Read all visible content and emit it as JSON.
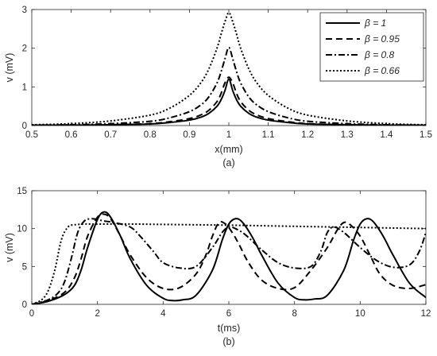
{
  "chart_data": [
    {
      "type": "line",
      "panel_label": "(a)",
      "xlabel": "x(mm)",
      "ylabel": "v (mV)",
      "xlim": [
        0.5,
        1.5
      ],
      "ylim": [
        0,
        3
      ],
      "xticks": [
        "0.5",
        "0.6",
        "0.7",
        "0.8",
        "0.9",
        "1",
        "1.1",
        "1.2",
        "1.3",
        "1.4",
        "1.5"
      ],
      "yticks": [
        "0",
        "1",
        "2",
        "3"
      ],
      "grid": false,
      "legend_position": "top-right",
      "series": [
        {
          "name": "β = 1",
          "style": "solid",
          "x": [
            0.5,
            0.6,
            0.7,
            0.8,
            0.85,
            0.9,
            0.93,
            0.95,
            0.97,
            0.98,
            0.99,
            1.0,
            1.01,
            1.02,
            1.03,
            1.05,
            1.07,
            1.1,
            1.15,
            1.2,
            1.3,
            1.4,
            1.5
          ],
          "y": [
            0.01,
            0.01,
            0.02,
            0.04,
            0.08,
            0.14,
            0.22,
            0.32,
            0.5,
            0.66,
            0.9,
            1.2,
            0.9,
            0.66,
            0.5,
            0.32,
            0.22,
            0.14,
            0.08,
            0.04,
            0.02,
            0.01,
            0.01
          ]
        },
        {
          "name": "β = 0.95",
          "style": "dashed",
          "x": [
            0.5,
            0.6,
            0.7,
            0.8,
            0.85,
            0.9,
            0.93,
            0.95,
            0.97,
            0.98,
            0.99,
            1.0,
            1.01,
            1.02,
            1.03,
            1.05,
            1.07,
            1.1,
            1.15,
            1.2,
            1.3,
            1.4,
            1.5
          ],
          "y": [
            0.01,
            0.01,
            0.02,
            0.05,
            0.1,
            0.18,
            0.28,
            0.4,
            0.62,
            0.82,
            1.1,
            1.25,
            1.1,
            0.82,
            0.62,
            0.4,
            0.28,
            0.18,
            0.1,
            0.05,
            0.02,
            0.01,
            0.01
          ]
        },
        {
          "name": "β = 0.8",
          "style": "dashdot",
          "x": [
            0.5,
            0.6,
            0.7,
            0.8,
            0.85,
            0.9,
            0.93,
            0.95,
            0.97,
            0.98,
            0.99,
            1.0,
            1.01,
            1.02,
            1.03,
            1.05,
            1.07,
            1.1,
            1.15,
            1.2,
            1.3,
            1.4,
            1.5
          ],
          "y": [
            0.01,
            0.02,
            0.05,
            0.11,
            0.2,
            0.36,
            0.54,
            0.75,
            1.1,
            1.38,
            1.72,
            2.02,
            1.72,
            1.38,
            1.1,
            0.75,
            0.54,
            0.36,
            0.2,
            0.11,
            0.05,
            0.02,
            0.01
          ]
        },
        {
          "name": "β = 0.66",
          "style": "dotted",
          "x": [
            0.5,
            0.6,
            0.7,
            0.8,
            0.85,
            0.9,
            0.93,
            0.95,
            0.97,
            0.98,
            0.99,
            1.0,
            1.01,
            1.02,
            1.03,
            1.05,
            1.07,
            1.1,
            1.15,
            1.2,
            1.3,
            1.4,
            1.5
          ],
          "y": [
            0.02,
            0.05,
            0.12,
            0.27,
            0.45,
            0.78,
            1.12,
            1.48,
            2.0,
            2.35,
            2.68,
            2.92,
            2.68,
            2.35,
            2.0,
            1.48,
            1.12,
            0.78,
            0.45,
            0.27,
            0.12,
            0.05,
            0.02
          ]
        }
      ]
    },
    {
      "type": "line",
      "panel_label": "(b)",
      "xlabel": "t(ms)",
      "ylabel": "v (mV)",
      "xlim": [
        0,
        12
      ],
      "ylim": [
        0,
        15
      ],
      "xticks": [
        "0",
        "2",
        "4",
        "6",
        "8",
        "10",
        "12"
      ],
      "yticks": [
        "0",
        "5",
        "10",
        "15"
      ],
      "grid": false,
      "series": [
        {
          "name": "β = 1",
          "style": "solid",
          "x": [
            0,
            0.5,
            1.0,
            1.3,
            1.5,
            1.7,
            2.0,
            2.2,
            2.4,
            2.7,
            3.0,
            3.5,
            4.0,
            4.3,
            4.6,
            5.0,
            5.5,
            5.8,
            6.0,
            6.2,
            6.4,
            6.7,
            7.0,
            7.5,
            8.0,
            8.3,
            8.6,
            9.0,
            9.5,
            9.8,
            10.0,
            10.2,
            10.4,
            10.7,
            11.0,
            11.5,
            12.0
          ],
          "y": [
            0,
            0.4,
            1.3,
            2.5,
            4.5,
            7.5,
            11.2,
            12.2,
            11.5,
            9.0,
            6.0,
            2.5,
            0.8,
            0.5,
            0.6,
            1.2,
            4.5,
            8.5,
            10.6,
            11.3,
            10.9,
            9.0,
            6.5,
            2.8,
            0.9,
            0.6,
            0.7,
            1.2,
            4.5,
            8.5,
            10.6,
            11.3,
            10.9,
            9.0,
            6.5,
            2.8,
            0.9
          ]
        },
        {
          "name": "β = 0.95",
          "style": "dashed",
          "x": [
            0,
            0.5,
            1.0,
            1.3,
            1.5,
            1.7,
            2.0,
            2.2,
            2.4,
            2.7,
            3.0,
            3.5,
            4.0,
            4.5,
            5.0,
            5.3,
            5.5,
            5.7,
            5.9,
            6.1,
            6.3,
            6.6,
            7.0,
            7.5,
            8.0,
            8.5,
            9.0,
            9.3,
            9.5,
            9.7,
            10.0,
            10.3,
            10.6,
            11.0,
            11.5,
            12.0
          ],
          "y": [
            0,
            0.5,
            1.6,
            3.5,
            6.0,
            9.0,
            11.5,
            11.9,
            11.3,
            9.0,
            6.5,
            3.5,
            2.1,
            2.2,
            4.0,
            6.5,
            9.0,
            10.8,
            10.6,
            9.5,
            8.0,
            5.5,
            3.2,
            2.1,
            2.2,
            4.5,
            7.5,
            9.8,
            10.8,
            10.5,
            9.0,
            6.5,
            4.0,
            2.5,
            2.1,
            2.6
          ]
        },
        {
          "name": "β = 0.8",
          "style": "dashdot",
          "x": [
            0,
            0.5,
            0.8,
            1.0,
            1.2,
            1.4,
            1.6,
            1.8,
            2.0,
            2.2,
            2.5,
            3.0,
            3.3,
            3.7,
            4.0,
            4.5,
            5.0,
            5.5,
            5.8,
            6.0,
            6.2,
            6.5,
            7.0,
            7.5,
            8.0,
            8.5,
            8.8,
            9.0,
            9.2,
            9.5,
            10.0,
            10.5,
            11.0,
            11.5,
            11.8,
            12.0
          ],
          "y": [
            0,
            0.6,
            1.5,
            3.0,
            6.0,
            9.5,
            11.0,
            11.3,
            11.2,
            11.0,
            10.8,
            10.2,
            9.0,
            7.0,
            5.5,
            4.8,
            5.0,
            7.5,
            9.5,
            10.2,
            10.0,
            9.2,
            7.2,
            5.5,
            4.8,
            5.0,
            7.0,
            9.5,
            10.2,
            9.5,
            7.5,
            5.8,
            4.9,
            5.2,
            7.0,
            9.5
          ]
        },
        {
          "name": "β = 0.66",
          "style": "dotted",
          "x": [
            0,
            0.3,
            0.5,
            0.7,
            0.9,
            1.1,
            1.3,
            1.6,
            2.0,
            3.0,
            4.0,
            6.0,
            8.0,
            10.0,
            12.0
          ],
          "y": [
            0,
            0.6,
            1.8,
            4.5,
            8.5,
            10.2,
            10.5,
            10.6,
            10.6,
            10.6,
            10.55,
            10.45,
            10.3,
            10.15,
            10.0
          ]
        }
      ]
    }
  ]
}
